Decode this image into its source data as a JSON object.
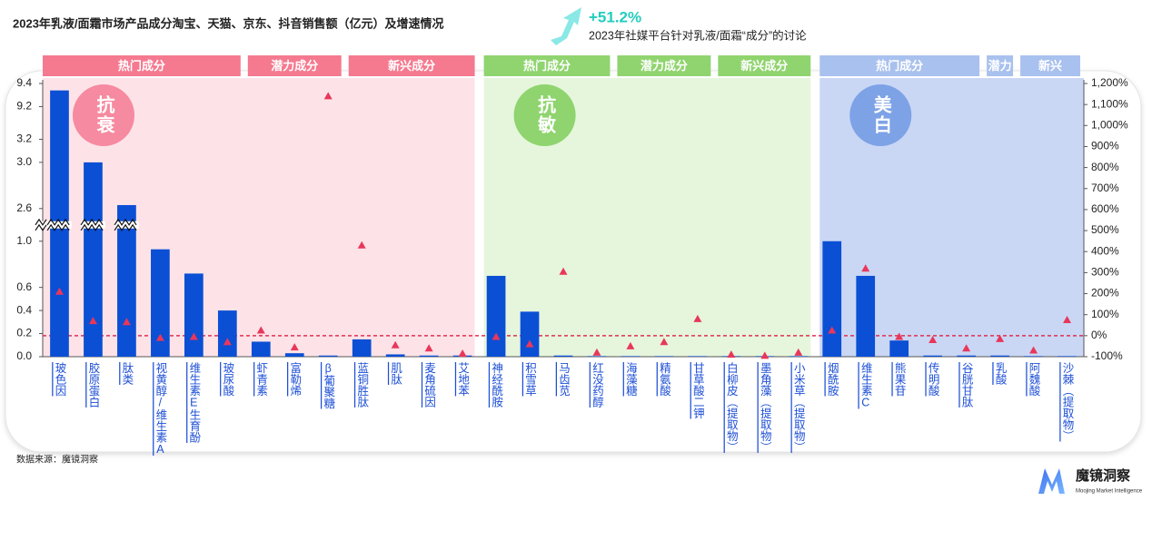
{
  "chart_data": {
    "type": "bar",
    "title": "2023年乳液/面霜市场产品成分淘宝、天猫、京东、抖音销售额（亿元）及增速情况",
    "annotation": {
      "label": "+51.2%",
      "text": "2023年社媒平台针对乳液/面霜“成分”的讨论"
    },
    "source": "数据来源：魔镜洞察",
    "logo": {
      "name": "魔镜洞察",
      "tagline": "Moojing Market Intelligence"
    },
    "categories": [
      "玻色因",
      "胶原蛋白",
      "肽类",
      "视黄醇/维生素A",
      "维生素E生育酚",
      "玻尿酸",
      "虾青素",
      "富勒烯",
      "β葡聚糖",
      "蓝铜胜肽",
      "肌肽",
      "麦角硫因",
      "艾地苯",
      "神经酰胺",
      "积雪草",
      "马齿苋",
      "红没药醇",
      "海藻糖",
      "精氨酸",
      "甘草酸二钾",
      "白柳皮（提取物）",
      "墨角藻（提取物）",
      "小米草（提取物）",
      "烟酰胺",
      "维生素C",
      "熊果苷",
      "传明酸",
      "谷胱甘肽",
      "乳酸",
      "阿魏酸",
      "沙棘（提取物）"
    ],
    "series": [
      {
        "type": "bar",
        "color": "#0b4fd4",
        "values": [
          9.34,
          3.0,
          2.63,
          0.93,
          0.72,
          0.4,
          0.13,
          0.03,
          0.01,
          0.15,
          0.02,
          0.01,
          0.01,
          0.7,
          0.39,
          0.01,
          0.005,
          0.005,
          0.005,
          0.005,
          0.005,
          0.005,
          0.005,
          1.0,
          0.7,
          0.14,
          0.01,
          0.01,
          0.01,
          0.005,
          0.005
        ]
      },
      {
        "type": "scatter",
        "marker": "triangle",
        "axis": "y2",
        "color": "#e8375a",
        "values": [
          210,
          70,
          65,
          -10,
          -5,
          -30,
          25,
          -55,
          1140,
          430,
          -45,
          -60,
          -85,
          -5,
          -40,
          305,
          -80,
          -50,
          -30,
          80,
          -90,
          -95,
          -80,
          25,
          320,
          -5,
          -20,
          -60,
          -15,
          -70,
          75
        ]
      }
    ],
    "ylim": [
      0,
      9.4
    ],
    "y_breaks": [
      [
        1.0,
        2.6
      ],
      [
        3.2,
        9.2
      ]
    ],
    "yticks": [
      {
        "value": 0,
        "label": "0.0"
      },
      0.2,
      0.4,
      0.6,
      {
        "value": 1,
        "label": "1.0"
      },
      2.6,
      {
        "value": 3,
        "label": "3.0"
      },
      3.2,
      9.2,
      9.4
    ],
    "y2lim": [
      -100,
      1200
    ],
    "y2ticks": [
      {
        "value": -100,
        "label": "-100%"
      },
      {
        "value": 0,
        "label": "0%"
      },
      {
        "value": 100,
        "label": "100%"
      },
      {
        "value": 200,
        "label": "200%"
      },
      {
        "value": 300,
        "label": "300%"
      },
      {
        "value": 400,
        "label": "400%"
      },
      {
        "value": 500,
        "label": "500%"
      },
      {
        "value": 600,
        "label": "600%"
      },
      {
        "value": 700,
        "label": "700%"
      },
      {
        "value": 800,
        "label": "800%"
      },
      {
        "value": 900,
        "label": "900%"
      },
      {
        "value": 1000,
        "label": "1,000%"
      },
      {
        "value": 1100,
        "label": "1,100%"
      },
      {
        "value": 1200,
        "label": "1,200%"
      }
    ],
    "reference_line": {
      "axis": "y2",
      "value": 0,
      "color": "#e03050"
    },
    "grid": false,
    "groups": [
      {
        "label": "抗衰",
        "panel_color": "#fde3e8",
        "header_color": "#f57a90",
        "badge_color": "#f68aa0",
        "sections": [
          {
            "label": "热门成分",
            "count": 6
          },
          {
            "label": "潜力成分",
            "count": 3
          },
          {
            "label": "新兴成分",
            "count": 4
          }
        ]
      },
      {
        "label": "抗敏",
        "panel_color": "#e6f6dc",
        "header_color": "#90d46f",
        "badge_color": "#8fd46e",
        "sections": [
          {
            "label": "热门成分",
            "count": 4
          },
          {
            "label": "潜力成分",
            "count": 3
          },
          {
            "label": "新兴成分",
            "count": 3
          }
        ]
      },
      {
        "label": "美白",
        "panel_color": "#c9d7f5",
        "header_color": "#a9c1ee",
        "badge_color": "#7ea2e6",
        "sections": [
          {
            "label": "热门成分",
            "count": 5
          },
          {
            "label": "潜力",
            "count": 1
          },
          {
            "label": "新兴",
            "count": 2
          }
        ]
      }
    ]
  }
}
